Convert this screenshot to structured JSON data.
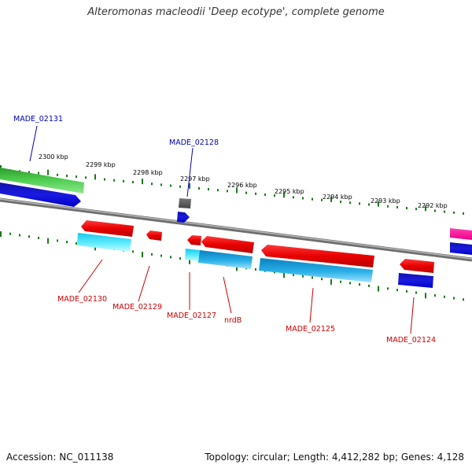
{
  "title": "Alteromonas macleodii 'Deep ecotype', complete genome",
  "footer": {
    "accession": "Accession: NC_011138",
    "summary": "Topology: circular; Length: 4,412,282 bp; Genes: 4,128"
  },
  "colors": {
    "forward_label": "#0000bb",
    "reverse_label": "#cc0000",
    "tick": "#1a7a1a",
    "backbone": "#888888"
  },
  "ruler_labels": [
    "2300 kbp",
    "2299 kbp",
    "2298 kbp",
    "2297 kbp",
    "2296 kbp",
    "2295 kbp",
    "2294 kbp",
    "2293 kbp",
    "2292 kbp"
  ],
  "gene_labels": {
    "forward": [
      "MADE_02131",
      "MADE_02128"
    ],
    "reverse": [
      "MADE_02130",
      "MADE_02129",
      "MADE_02127",
      "nrdB",
      "MADE_02125",
      "MADE_02124"
    ]
  }
}
